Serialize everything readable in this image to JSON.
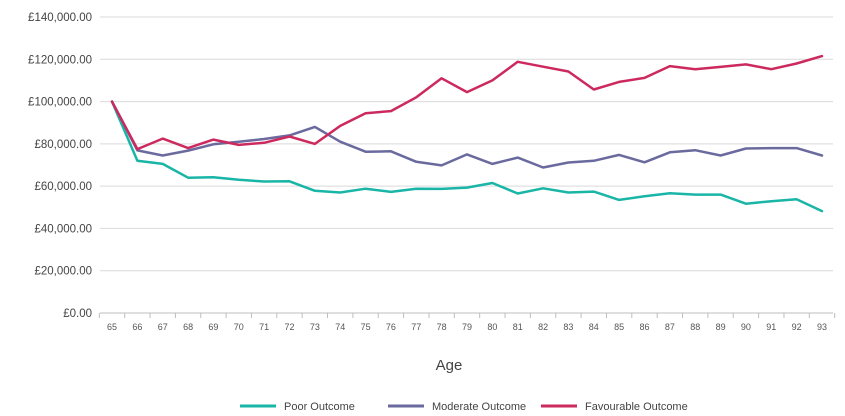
{
  "chart_data": {
    "type": "line",
    "title": "",
    "xlabel": "Age",
    "ylabel": "",
    "ylim": [
      0,
      140000
    ],
    "y_ticks": [
      0,
      20000,
      40000,
      60000,
      80000,
      100000,
      120000,
      140000
    ],
    "y_tick_labels": [
      "£0.00",
      "£20,000.00",
      "£40,000.00",
      "£60,000.00",
      "£80,000.00",
      "£100,000.00",
      "£120,000.00",
      "£140,000.00"
    ],
    "categories": [
      "65",
      "66",
      "67",
      "68",
      "69",
      "70",
      "71",
      "72",
      "73",
      "74",
      "75",
      "76",
      "77",
      "78",
      "79",
      "80",
      "81",
      "82",
      "83",
      "84",
      "85",
      "86",
      "87",
      "88",
      "89",
      "90",
      "91",
      "92",
      "93"
    ],
    "grid": "horizontal",
    "legend_position": "bottom",
    "series": [
      {
        "name": "Poor Outcome",
        "color": "#19b5a6",
        "values": [
          100000,
          72000,
          70500,
          64000,
          64200,
          63000,
          62200,
          62300,
          57800,
          57000,
          58800,
          57300,
          58800,
          58700,
          59300,
          61500,
          56500,
          59000,
          57000,
          57400,
          53500,
          55200,
          56600,
          56000,
          56000,
          51700,
          52900,
          53800,
          48200
        ]
      },
      {
        "name": "Moderate Outcome",
        "color": "#6a6a9e",
        "values": [
          100000,
          76900,
          74500,
          76800,
          79800,
          81000,
          82300,
          84000,
          88000,
          81000,
          76300,
          76500,
          71500,
          69800,
          75000,
          70500,
          73500,
          68800,
          71200,
          72000,
          74800,
          71300,
          76000,
          77000,
          74500,
          77800,
          78000,
          78000,
          74500
        ]
      },
      {
        "name": "Favourable Outcome",
        "color": "#cc2a5e",
        "values": [
          100000,
          77500,
          82500,
          78000,
          82000,
          79500,
          80500,
          83500,
          80000,
          88500,
          94500,
          95500,
          102000,
          111000,
          104500,
          110000,
          118800,
          116500,
          114200,
          105700,
          109300,
          111200,
          116800,
          115300,
          116400,
          117600,
          115300,
          118000,
          121500
        ]
      }
    ]
  }
}
